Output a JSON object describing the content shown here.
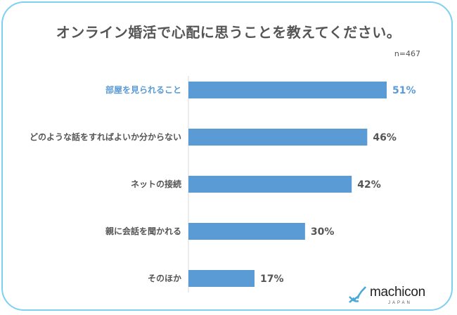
{
  "title": "オンライン婚活で心配に思うことを教えてください。",
  "sample_size": "n=467",
  "chart_data": {
    "type": "bar",
    "orientation": "horizontal",
    "categories": [
      "部屋を見られること",
      "どのような話をすればよいか分からない",
      "ネットの接続",
      "親に会話を聞かれる",
      "そのほか"
    ],
    "values": [
      51,
      46,
      42,
      30,
      17
    ],
    "value_labels": [
      "51%",
      "46%",
      "42%",
      "30%",
      "17%"
    ],
    "xlim": [
      0,
      60
    ],
    "grid": false,
    "highlight_index": 0,
    "colors": {
      "bar": "#5b9bd5",
      "highlight_label": "#5b9bd5",
      "label": "#555555",
      "value": "#555555"
    }
  },
  "logo": {
    "word": "machicon",
    "sub": "JAPAN",
    "icon": "dna-helix-icon",
    "colors": {
      "icon": "#4aa8d8",
      "word": "#222222"
    }
  }
}
